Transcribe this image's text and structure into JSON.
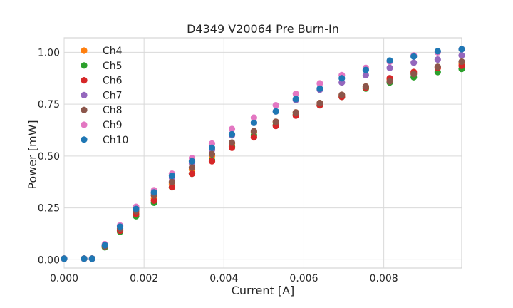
{
  "chart_data": {
    "type": "scatter",
    "title": "D4349 V20064 Pre Burn-In",
    "xlabel": "Current [A]",
    "ylabel": "Power [mW]",
    "xlim": [
      0,
      0.00995
    ],
    "ylim": [
      -0.04,
      1.07
    ],
    "xticks": [
      0,
      0.002,
      0.004,
      0.006,
      0.008
    ],
    "xtick_labels": [
      "0.000",
      "0.002",
      "0.004",
      "0.006",
      "0.008"
    ],
    "yticks": [
      0,
      0.25,
      0.5,
      0.75,
      1.0
    ],
    "ytick_labels": [
      "0.00",
      "0.25",
      "0.50",
      "0.75",
      "1.00"
    ],
    "grid": true,
    "legend_position": "top-left",
    "x": [
      0.0,
      0.0005,
      0.0007,
      0.00102,
      0.0014,
      0.0018,
      0.00225,
      0.0027,
      0.0032,
      0.0037,
      0.0042,
      0.00475,
      0.0053,
      0.0058,
      0.0064,
      0.00695,
      0.00755,
      0.00815,
      0.00875,
      0.00935,
      0.00995
    ],
    "series": [
      {
        "name": "Ch4",
        "color": "#ff7f0e",
        "values": [
          0.005,
          0.005,
          0.005,
          0.065,
          0.145,
          0.225,
          0.295,
          0.365,
          0.435,
          0.5,
          0.56,
          0.615,
          0.665,
          0.71,
          0.755,
          0.795,
          0.835,
          0.87,
          0.9,
          0.925,
          0.945
        ]
      },
      {
        "name": "Ch5",
        "color": "#2ca02c",
        "values": [
          0.005,
          0.005,
          0.005,
          0.06,
          0.135,
          0.21,
          0.275,
          0.35,
          0.415,
          0.48,
          0.545,
          0.6,
          0.65,
          0.7,
          0.745,
          0.785,
          0.825,
          0.855,
          0.88,
          0.905,
          0.92
        ]
      },
      {
        "name": "Ch6",
        "color": "#d62728",
        "values": [
          0.005,
          0.005,
          0.005,
          0.065,
          0.14,
          0.22,
          0.285,
          0.35,
          0.415,
          0.475,
          0.54,
          0.59,
          0.645,
          0.695,
          0.745,
          0.785,
          0.83,
          0.875,
          0.905,
          0.925,
          0.935
        ]
      },
      {
        "name": "Ch7",
        "color": "#9467bd",
        "values": [
          0.005,
          0.005,
          0.005,
          0.07,
          0.165,
          0.25,
          0.32,
          0.395,
          0.465,
          0.53,
          0.6,
          0.66,
          0.715,
          0.77,
          0.82,
          0.855,
          0.89,
          0.925,
          0.95,
          0.965,
          0.985
        ]
      },
      {
        "name": "Ch8",
        "color": "#8c564b",
        "values": [
          0.005,
          0.005,
          0.005,
          0.065,
          0.15,
          0.235,
          0.31,
          0.375,
          0.445,
          0.51,
          0.565,
          0.62,
          0.665,
          0.71,
          0.755,
          0.795,
          0.835,
          0.86,
          0.895,
          0.93,
          0.955
        ]
      },
      {
        "name": "Ch9",
        "color": "#e377c2",
        "values": [
          0.005,
          0.005,
          0.005,
          0.075,
          0.165,
          0.255,
          0.335,
          0.415,
          0.49,
          0.56,
          0.63,
          0.685,
          0.745,
          0.8,
          0.85,
          0.89,
          0.925,
          0.955,
          0.985,
          1.0,
          1.015
        ]
      },
      {
        "name": "Ch10",
        "color": "#1f77b4",
        "values": [
          0.005,
          0.005,
          0.005,
          0.07,
          0.16,
          0.245,
          0.325,
          0.405,
          0.475,
          0.54,
          0.605,
          0.66,
          0.715,
          0.775,
          0.825,
          0.875,
          0.915,
          0.96,
          0.98,
          1.005,
          1.015
        ]
      }
    ]
  }
}
